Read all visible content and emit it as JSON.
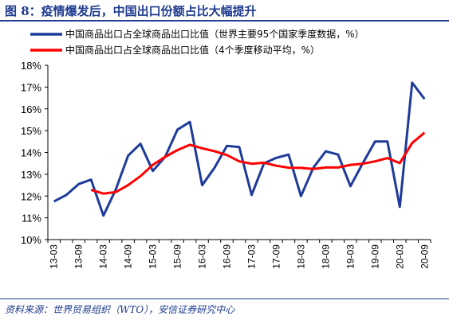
{
  "header": {
    "title": "图 8：疫情爆发后，中国出口份额占比大幅提升"
  },
  "footer": {
    "source": "资料来源：世界贸易组织（WTO），安信证券研究中心"
  },
  "colors": {
    "series1": "#1f3b9a",
    "series2": "#ff0000",
    "accent": "#1f3b8f"
  },
  "chart_data": {
    "type": "line",
    "title": "",
    "xlabel": "",
    "ylabel": "",
    "ylim": [
      10,
      18
    ],
    "y_ticks": [
      "10%",
      "11%",
      "12%",
      "13%",
      "14%",
      "15%",
      "16%",
      "17%",
      "18%"
    ],
    "x_tick_labels": [
      "13-03",
      "13-09",
      "14-03",
      "14-09",
      "15-03",
      "15-09",
      "16-03",
      "16-09",
      "17-03",
      "17-09",
      "18-03",
      "18-09",
      "19-03",
      "19-09",
      "20-03",
      "20-09"
    ],
    "categories": [
      "13-03",
      "13-06",
      "13-09",
      "13-12",
      "14-03",
      "14-06",
      "14-09",
      "14-12",
      "15-03",
      "15-06",
      "15-09",
      "15-12",
      "16-03",
      "16-06",
      "16-09",
      "16-12",
      "17-03",
      "17-06",
      "17-09",
      "17-12",
      "18-03",
      "18-06",
      "18-09",
      "18-12",
      "19-03",
      "19-06",
      "19-09",
      "19-12",
      "20-03",
      "20-06",
      "20-09"
    ],
    "legend_position": "top",
    "grid": false,
    "series": [
      {
        "name": "中国商品出口占全球商品出口比值（世界主要95个国家季度数据，%）",
        "values": [
          11.75,
          12.05,
          12.55,
          12.75,
          11.1,
          12.3,
          13.85,
          14.4,
          13.15,
          13.8,
          15.05,
          15.4,
          12.5,
          13.3,
          14.3,
          14.25,
          12.05,
          13.5,
          13.75,
          13.9,
          12.0,
          13.3,
          14.05,
          13.9,
          12.45,
          13.5,
          14.5,
          14.5,
          11.5,
          17.2,
          16.45
        ]
      },
      {
        "name": "中国商品出口占全球商品出口比值（4个季度移动平均，%）",
        "values": [
          null,
          null,
          null,
          12.28,
          12.11,
          12.18,
          12.5,
          12.91,
          13.43,
          13.8,
          14.11,
          14.35,
          14.19,
          14.06,
          13.88,
          13.59,
          13.48,
          13.53,
          13.39,
          13.3,
          13.29,
          13.24,
          13.31,
          13.31,
          13.43,
          13.48,
          13.59,
          13.74,
          13.51,
          14.43,
          14.91
        ]
      }
    ]
  }
}
